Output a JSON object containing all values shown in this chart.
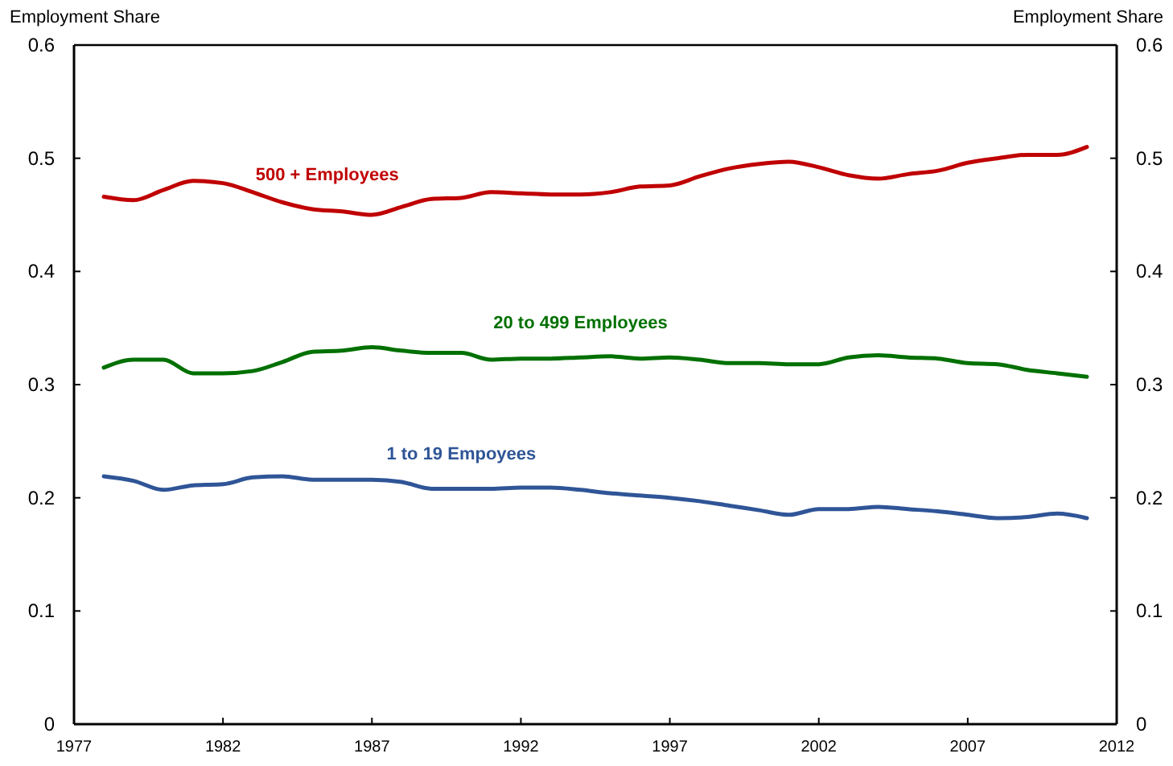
{
  "chart_data": {
    "type": "line",
    "ylabel": "Employment Share",
    "y2label": "Employment Share",
    "x": [
      1978,
      1979,
      1980,
      1981,
      1982,
      1983,
      1984,
      1985,
      1986,
      1987,
      1988,
      1989,
      1990,
      1991,
      1992,
      1993,
      1994,
      1995,
      1996,
      1997,
      1998,
      1999,
      2000,
      2001,
      2002,
      2003,
      2004,
      2005,
      2006,
      2007,
      2008,
      2009,
      2010,
      2011
    ],
    "xlim": [
      1977,
      2012
    ],
    "xticks": [
      1977,
      1982,
      1987,
      1992,
      1997,
      2002,
      2007,
      2012
    ],
    "ylim": [
      0,
      0.6
    ],
    "yticks": [
      0,
      0.1,
      0.2,
      0.3,
      0.4,
      0.5,
      0.6
    ],
    "y2lim": [
      0,
      0.6
    ],
    "y2ticks": [
      0,
      0.1,
      0.2,
      0.3,
      0.4,
      0.5,
      0.6
    ],
    "grid": false,
    "legend": false,
    "marker": "none",
    "line_style": "solid",
    "series": [
      {
        "name": "500 + Employees",
        "color": "#c00000",
        "values": [
          0.466,
          0.463,
          0.472,
          0.48,
          0.478,
          0.47,
          0.461,
          0.455,
          0.453,
          0.45,
          0.457,
          0.464,
          0.465,
          0.47,
          0.469,
          0.468,
          0.468,
          0.47,
          0.475,
          0.476,
          0.484,
          0.491,
          0.495,
          0.497,
          0.492,
          0.485,
          0.482,
          0.486,
          0.489,
          0.496,
          0.5,
          0.503,
          0.503,
          0.51
        ]
      },
      {
        "name": "20 to 499 Employees",
        "color": "#007000",
        "values": [
          0.315,
          0.322,
          0.322,
          0.31,
          0.31,
          0.312,
          0.32,
          0.329,
          0.33,
          0.333,
          0.33,
          0.328,
          0.328,
          0.322,
          0.323,
          0.323,
          0.324,
          0.325,
          0.323,
          0.324,
          0.322,
          0.319,
          0.319,
          0.318,
          0.318,
          0.324,
          0.326,
          0.324,
          0.323,
          0.319,
          0.318,
          0.313,
          0.31,
          0.307
        ]
      },
      {
        "name": "1 to 19 Empoyees",
        "color": "#2f5597",
        "values": [
          0.219,
          0.215,
          0.207,
          0.211,
          0.212,
          0.218,
          0.219,
          0.216,
          0.216,
          0.216,
          0.214,
          0.208,
          0.208,
          0.208,
          0.209,
          0.209,
          0.207,
          0.204,
          0.202,
          0.2,
          0.197,
          0.193,
          0.189,
          0.185,
          0.19,
          0.19,
          0.192,
          0.19,
          0.188,
          0.185,
          0.182,
          0.183,
          0.186,
          0.182
        ]
      }
    ]
  }
}
